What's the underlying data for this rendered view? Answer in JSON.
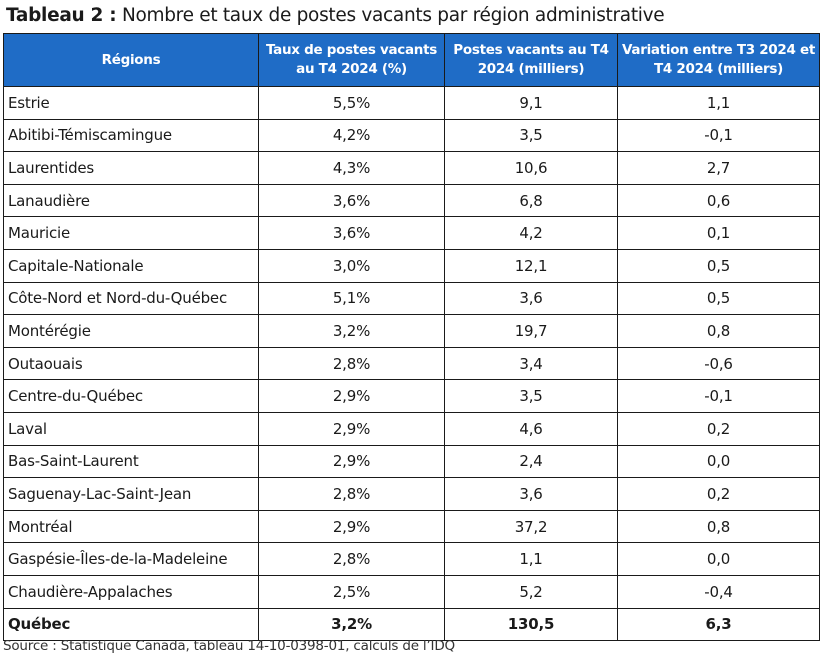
{
  "title": {
    "label": "Tableau 2 :",
    "text": "Nombre et taux de postes vacants par région administrative"
  },
  "table": {
    "headers": [
      "Régions",
      "Taux de postes vacants au T4 2024 (%)",
      "Postes vacants au T4 2024 (milliers)",
      "Variation entre T3 2024 et T4 2024 (milliers)"
    ],
    "header_color": "#1f6cc6",
    "rows": [
      [
        "Estrie",
        "5,5%",
        "9,1",
        "1,1"
      ],
      [
        "Abitibi-Témiscamingue",
        "4,2%",
        "3,5",
        "-0,1"
      ],
      [
        "Laurentides",
        "4,3%",
        "10,6",
        "2,7"
      ],
      [
        "Lanaudière",
        "3,6%",
        "6,8",
        "0,6"
      ],
      [
        "Mauricie",
        "3,6%",
        "4,2",
        "0,1"
      ],
      [
        "Capitale-Nationale",
        "3,0%",
        "12,1",
        "0,5"
      ],
      [
        "Côte-Nord et Nord-du-Québec",
        "5,1%",
        "3,6",
        "0,5"
      ],
      [
        "Montérégie",
        "3,2%",
        "19,7",
        "0,8"
      ],
      [
        "Outaouais",
        "2,8%",
        "3,4",
        "-0,6"
      ],
      [
        "Centre-du-Québec",
        "2,9%",
        "3,5",
        "-0,1"
      ],
      [
        "Laval",
        "2,9%",
        "4,6",
        "0,2"
      ],
      [
        "Bas-Saint-Laurent",
        "2,9%",
        "2,4",
        "0,0"
      ],
      [
        "Saguenay-Lac-Saint-Jean",
        "2,8%",
        "3,6",
        "0,2"
      ],
      [
        "Montréal",
        "2,9%",
        "37,2",
        "0,8"
      ],
      [
        "Gaspésie-Îles-de-la-Madeleine",
        "2,8%",
        "1,1",
        "0,0"
      ],
      [
        "Chaudière-Appalaches",
        "2,5%",
        "5,2",
        "-0,4"
      ]
    ],
    "total": [
      "Québec",
      "3,2%",
      "130,5",
      "6,3"
    ]
  },
  "source": "Source : Statistique Canada, tableau 14-10-0398-01, calculs de l’IDQ"
}
